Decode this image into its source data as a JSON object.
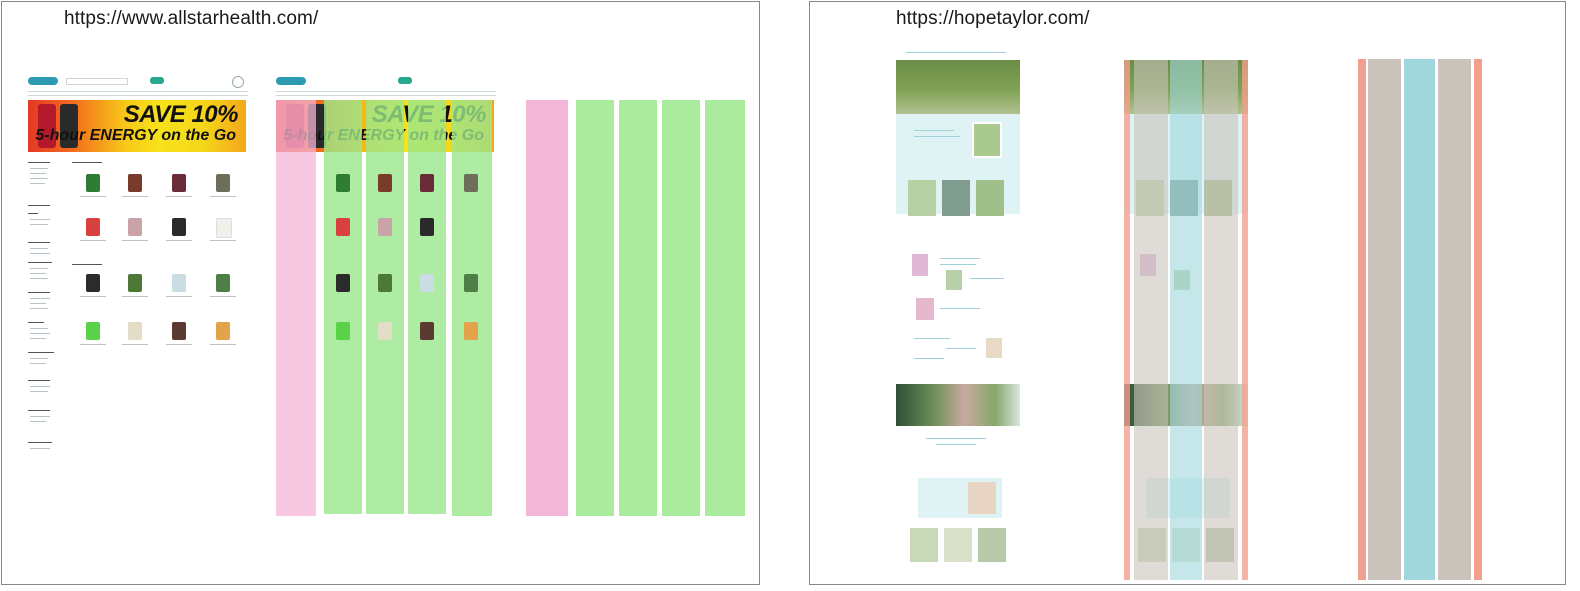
{
  "panels": [
    {
      "url": "https://www.allstarhealth.com/"
    },
    {
      "url": "https://hopetaylor.com/"
    }
  ],
  "allstar": {
    "banner": {
      "headline": "SAVE 10%",
      "tagline": "5-hour ENERGY on the Go"
    }
  },
  "colors": {
    "sidebar_overlay": "#f4b6d6",
    "product_column_overlay": "#9be78c",
    "hope_teal": "#9fd7dc",
    "hope_salmon": "#f1a08f",
    "hope_taupe": "#c9c3bc"
  }
}
